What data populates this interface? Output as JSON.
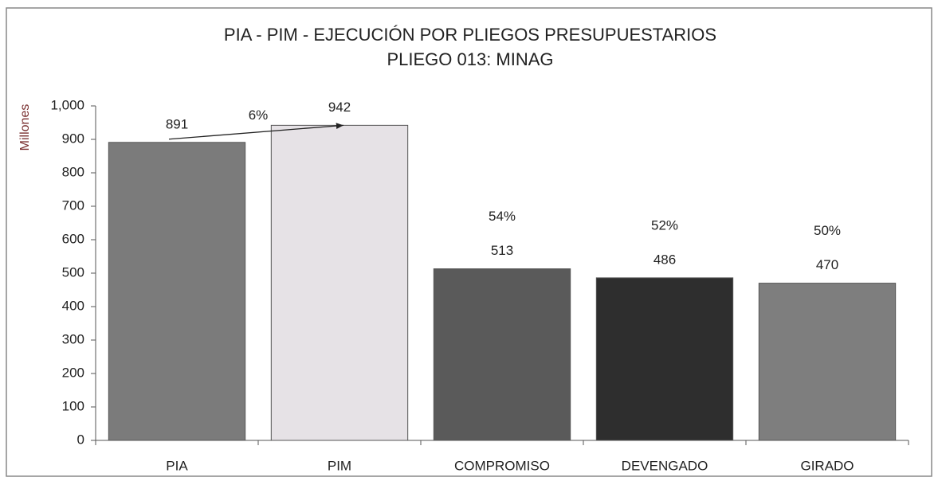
{
  "chart_data": {
    "type": "bar",
    "title": "PIA - PIM - EJECUCIÓN POR PLIEGOS PRESUPUESTARIOS",
    "subtitle": "PLIEGO 013: MINAG",
    "y_label": "Millones",
    "categories": [
      "PIA",
      "PIM",
      "COMPROMISO",
      "DEVENGADO",
      "GIRADO"
    ],
    "values": [
      891,
      942,
      513,
      486,
      470
    ],
    "colors": [
      "#7b7b7b",
      "#e6e2e6",
      "#5a5a5a",
      "#2e2e2e",
      "#7e7e7e"
    ],
    "ylim": [
      0,
      1000
    ],
    "yticks": [
      0,
      100,
      200,
      300,
      400,
      500,
      600,
      700,
      800,
      900,
      {
        "value": 1000,
        "label": "1,000"
      }
    ],
    "grid": false,
    "annotations": [
      {
        "text": "6%",
        "category": "PIM"
      },
      {
        "text": "54%",
        "category": "COMPROMISO"
      },
      {
        "text": "52%",
        "category": "DEVENGADO"
      },
      {
        "text": "50%",
        "category": "GIRADO"
      }
    ]
  }
}
